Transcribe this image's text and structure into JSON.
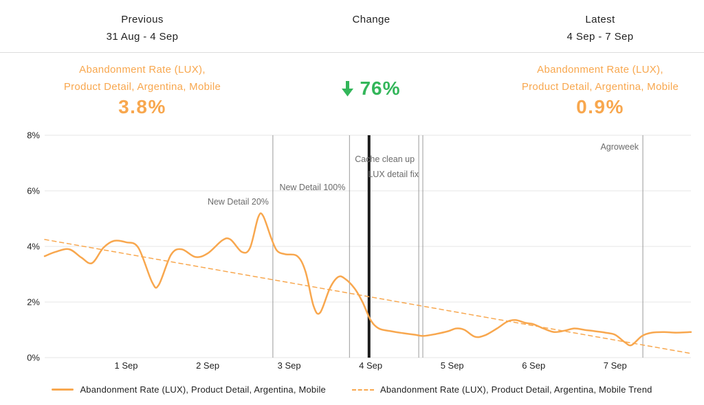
{
  "header": {
    "previous": {
      "title": "Previous",
      "range": "31 Aug - 4 Sep"
    },
    "change": {
      "title": "Change"
    },
    "latest": {
      "title": "Latest",
      "range": "4 Sep - 7 Sep"
    }
  },
  "metrics": {
    "previous": {
      "label_line1": "Abandonment Rate (LUX),",
      "label_line2": "Product Detail, Argentina, Mobile",
      "value": "3.8%"
    },
    "change": {
      "value": "76%",
      "direction": "down",
      "arrow_icon": "down-arrow-icon"
    },
    "latest": {
      "label_line1": "Abandonment Rate (LUX),",
      "label_line2": "Product Detail, Argentina, Mobile",
      "value": "0.9%"
    }
  },
  "colors": {
    "orange": "#F8A74E",
    "green": "#33B65A",
    "grid": "#E4E4E4",
    "axis_text": "#1F1F1F",
    "annotation_line": "#9A9A9A",
    "annotation_text": "#6B6B6B",
    "milestone": "#1A1A1A"
  },
  "chart_data": {
    "type": "line",
    "x_domain_days_from_31_aug": [
      0,
      7.93
    ],
    "x_ticks": [
      {
        "day": 1,
        "label": "1 Sep"
      },
      {
        "day": 2,
        "label": "2 Sep"
      },
      {
        "day": 3,
        "label": "3 Sep"
      },
      {
        "day": 4,
        "label": "4 Sep"
      },
      {
        "day": 5,
        "label": "5 Sep"
      },
      {
        "day": 6,
        "label": "6 Sep"
      },
      {
        "day": 7,
        "label": "7 Sep"
      }
    ],
    "ylim": [
      0,
      8
    ],
    "y_ticks": [
      {
        "value": 0,
        "label": "0%"
      },
      {
        "value": 2,
        "label": "2%"
      },
      {
        "value": 4,
        "label": "4%"
      },
      {
        "value": 6,
        "label": "6%"
      },
      {
        "value": 8,
        "label": "8%"
      }
    ],
    "series": [
      {
        "name": "Abandonment Rate (LUX), Product Detail, Argentina, Mobile",
        "style": "solid",
        "points": [
          [
            0.0,
            3.65
          ],
          [
            0.13,
            3.8
          ],
          [
            0.3,
            3.9
          ],
          [
            0.45,
            3.6
          ],
          [
            0.58,
            3.4
          ],
          [
            0.72,
            3.95
          ],
          [
            0.85,
            4.2
          ],
          [
            1.0,
            4.15
          ],
          [
            1.15,
            3.95
          ],
          [
            1.32,
            2.7
          ],
          [
            1.4,
            2.62
          ],
          [
            1.55,
            3.7
          ],
          [
            1.68,
            3.9
          ],
          [
            1.85,
            3.62
          ],
          [
            2.0,
            3.75
          ],
          [
            2.18,
            4.22
          ],
          [
            2.28,
            4.25
          ],
          [
            2.42,
            3.8
          ],
          [
            2.52,
            3.95
          ],
          [
            2.62,
            5.05
          ],
          [
            2.68,
            5.1
          ],
          [
            2.78,
            4.3
          ],
          [
            2.85,
            3.85
          ],
          [
            2.95,
            3.72
          ],
          [
            3.1,
            3.65
          ],
          [
            3.2,
            3.1
          ],
          [
            3.3,
            1.85
          ],
          [
            3.38,
            1.62
          ],
          [
            3.5,
            2.5
          ],
          [
            3.6,
            2.9
          ],
          [
            3.68,
            2.85
          ],
          [
            3.8,
            2.5
          ],
          [
            3.9,
            2.0
          ],
          [
            4.0,
            1.35
          ],
          [
            4.1,
            1.05
          ],
          [
            4.25,
            0.95
          ],
          [
            4.4,
            0.88
          ],
          [
            4.55,
            0.82
          ],
          [
            4.65,
            0.78
          ],
          [
            4.8,
            0.85
          ],
          [
            4.95,
            0.95
          ],
          [
            5.05,
            1.05
          ],
          [
            5.15,
            1.0
          ],
          [
            5.28,
            0.75
          ],
          [
            5.4,
            0.8
          ],
          [
            5.55,
            1.05
          ],
          [
            5.68,
            1.3
          ],
          [
            5.78,
            1.35
          ],
          [
            5.9,
            1.25
          ],
          [
            6.0,
            1.2
          ],
          [
            6.12,
            1.05
          ],
          [
            6.25,
            0.92
          ],
          [
            6.38,
            0.97
          ],
          [
            6.5,
            1.05
          ],
          [
            6.62,
            1.0
          ],
          [
            6.75,
            0.95
          ],
          [
            6.88,
            0.9
          ],
          [
            7.0,
            0.82
          ],
          [
            7.12,
            0.55
          ],
          [
            7.2,
            0.45
          ],
          [
            7.33,
            0.78
          ],
          [
            7.45,
            0.9
          ],
          [
            7.6,
            0.92
          ],
          [
            7.75,
            0.9
          ],
          [
            7.93,
            0.92
          ]
        ]
      },
      {
        "name": "Abandonment Rate (LUX), Product Detail, Argentina, Mobile Trend",
        "style": "dashed",
        "points": [
          [
            0.0,
            4.25
          ],
          [
            7.93,
            0.15
          ]
        ]
      }
    ],
    "annotations": [
      {
        "label": "New Detail 20%",
        "day": 2.8,
        "label_offset": 101,
        "emphasis": false
      },
      {
        "label": "New Detail 100%",
        "day": 3.74,
        "label_offset": 80,
        "emphasis": false
      },
      {
        "label": "",
        "day": 3.98,
        "label_offset": 0,
        "emphasis": true
      },
      {
        "label": "Cache clean up",
        "day": 4.59,
        "label_offset": 39,
        "emphasis": false
      },
      {
        "label": "LUX detail fix",
        "day": 4.64,
        "label_offset": 61,
        "emphasis": false
      },
      {
        "label": "Agroweek",
        "day": 7.34,
        "label_offset": 21,
        "emphasis": false
      }
    ],
    "legend": [
      {
        "label": "Abandonment Rate (LUX), Product Detail, Argentina, Mobile",
        "style": "solid"
      },
      {
        "label": "Abandonment Rate (LUX), Product Detail, Argentina, Mobile Trend",
        "style": "dashed"
      }
    ]
  }
}
